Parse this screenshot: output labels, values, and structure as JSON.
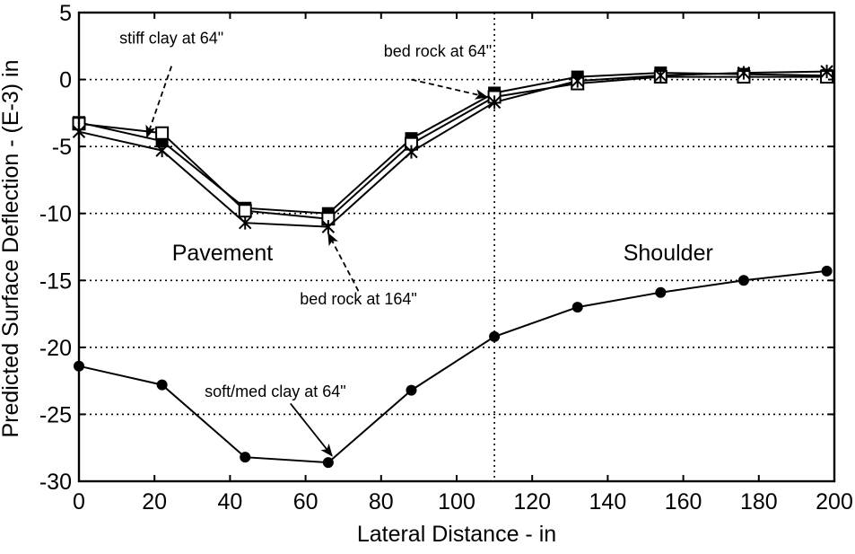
{
  "chart_data": {
    "type": "line",
    "title": "",
    "xlabel": "Lateral Distance - in",
    "ylabel": "Predicted Surface Deflection - (E-3) in",
    "xlim": [
      0,
      200
    ],
    "ylim": [
      -30,
      5
    ],
    "xticks": [
      0,
      20,
      40,
      60,
      80,
      100,
      120,
      140,
      160,
      180,
      200
    ],
    "yticks": [
      5,
      0,
      -5,
      -10,
      -15,
      -20,
      -25,
      -30
    ],
    "grid": "dotted",
    "legend": "none",
    "divider_x": 110,
    "regions": [
      {
        "label": "Pavement",
        "x": 38,
        "y": -13.5
      },
      {
        "label": "Shoulder",
        "x": 156,
        "y": -13.5
      }
    ],
    "series": [
      {
        "marker": "filled-square",
        "x": [
          0,
          22,
          44,
          66,
          88,
          110,
          132,
          154,
          176,
          198
        ],
        "y": [
          -3.2,
          -4.6,
          -9.6,
          -10.0,
          -4.4,
          -1.0,
          0.2,
          0.5,
          0.4,
          0.3
        ]
      },
      {
        "marker": "open-square",
        "x": [
          0,
          22,
          44,
          66,
          88,
          110,
          132,
          154,
          176,
          198
        ],
        "y": [
          -3.3,
          -4.0,
          -9.8,
          -10.4,
          -4.8,
          -1.3,
          -0.3,
          0.2,
          0.2,
          0.2
        ]
      },
      {
        "marker": "star",
        "x": [
          0,
          22,
          44,
          66,
          88,
          110,
          132,
          154,
          176,
          198
        ],
        "y": [
          -3.9,
          -5.3,
          -10.7,
          -11.0,
          -5.4,
          -1.7,
          -0.1,
          0.3,
          0.5,
          0.6
        ]
      },
      {
        "marker": "filled-circle",
        "x": [
          0,
          22,
          44,
          66,
          88,
          110,
          132,
          154,
          176,
          198
        ],
        "y": [
          -21.4,
          -22.8,
          -28.2,
          -28.6,
          -23.2,
          -19.2,
          -17.0,
          -15.9,
          -15.0,
          -14.3
        ]
      }
    ],
    "annotations": [
      {
        "text": "stiff clay at 64\"",
        "text_x": 24.5,
        "text_y": 2.7,
        "arrow_from": [
          24.5,
          1.0
        ],
        "arrow_to": [
          18,
          -4.3
        ],
        "dashed": true
      },
      {
        "text": "bed rock at 64\"",
        "text_x": 95,
        "text_y": 1.7,
        "arrow_from": [
          88,
          0.0
        ],
        "arrow_to": [
          108,
          -1.3
        ],
        "dashed": true
      },
      {
        "text": "bed rock at 164\"",
        "text_x": 74,
        "text_y": -16.8,
        "arrow_from": [
          74,
          -15.8
        ],
        "arrow_to": [
          66,
          -11.5
        ],
        "dashed": true
      },
      {
        "text": "soft/med clay at 64\"",
        "text_x": 52,
        "text_y": -23.7,
        "arrow_from": [
          56,
          -24.2
        ],
        "arrow_to": [
          67,
          -28.1
        ],
        "dashed": false
      }
    ]
  }
}
